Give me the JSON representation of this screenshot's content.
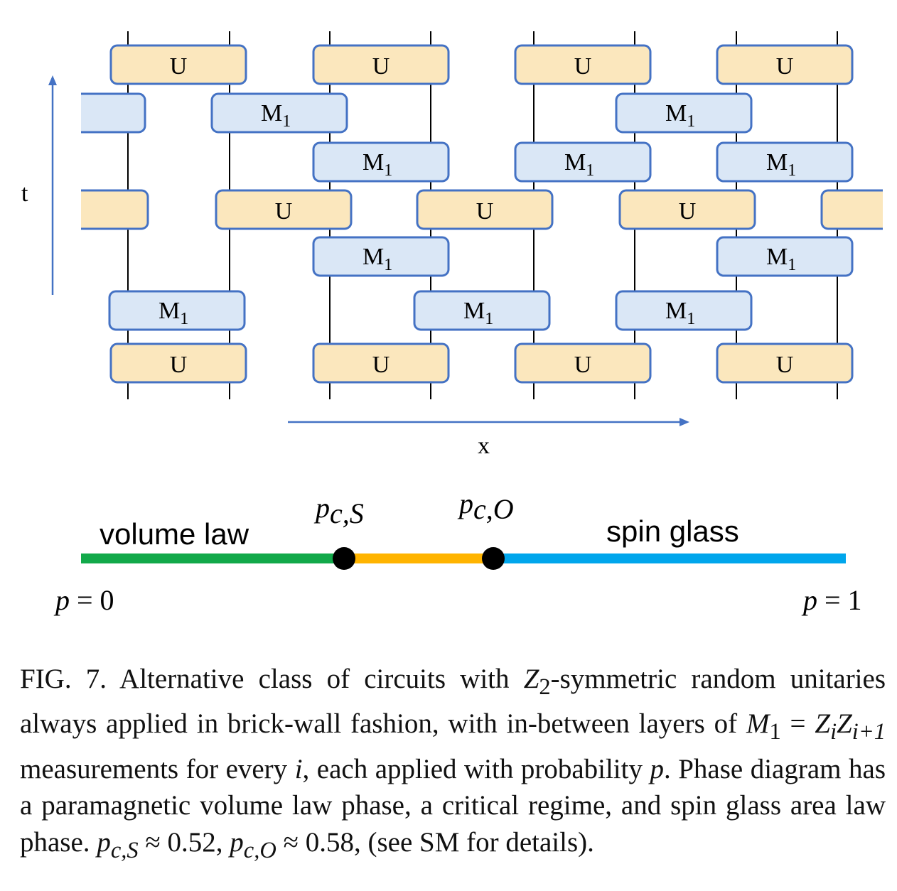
{
  "circuit": {
    "u_label": "U",
    "m_label": "M",
    "m_subscript": "1",
    "t_label": "t",
    "x_label": "x"
  },
  "phase_diagram": {
    "left_phase": "volume law",
    "right_phase": "spin glass",
    "pcs_main": "p",
    "pcs_sub": "c,S",
    "pco_main": "p",
    "pco_sub": "c,O",
    "left_end_p": "p",
    "left_end_eq": " = 0",
    "right_end_p": "p",
    "right_end_eq": " = 1",
    "colors": {
      "volume_law": "#12a94a",
      "critical": "#ffb400",
      "spin_glass": "#00a6ec"
    }
  },
  "caption": {
    "fig_label": "FIG. 7.",
    "part1": " Alternative class of circuits with ",
    "z2_main": "Z",
    "z2_sub": "2",
    "part2": "-symmetric random unitaries always applied in brick-wall fashion, with in-between layers of ",
    "m1_main": "M",
    "m1_sub": "1",
    "eq": " = ",
    "zi": "Z",
    "zi_sub": "i",
    "zi1": "Z",
    "zi1_sub": "i+1",
    "part3": " measurements for every ",
    "i_var": "i",
    "part4": ", each applied with probability ",
    "p_var": "p",
    "part5": ". Phase diagram has a paramagnetic volume law phase, a critical regime, and spin glass area law phase. ",
    "pcs": "p",
    "pcs_sub": "c,S",
    "approx1": " ≈ 0.52, ",
    "pco": "p",
    "pco_sub": "c,O",
    "approx2": " ≈ 0.58, (see SM for details)."
  }
}
